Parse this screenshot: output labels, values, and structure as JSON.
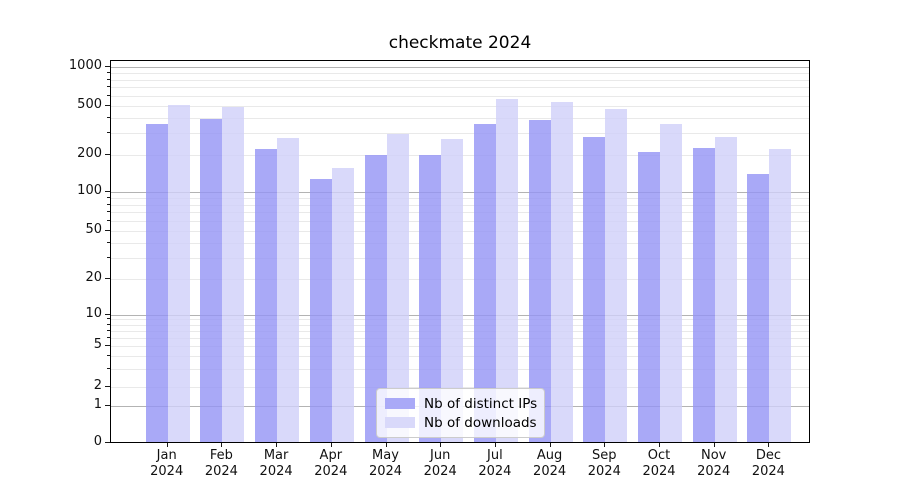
{
  "chart_data": {
    "type": "bar",
    "title": "checkmate 2024",
    "categories": [
      "Jan 2024",
      "Feb 2024",
      "Mar 2024",
      "Apr 2024",
      "May 2024",
      "Jun 2024",
      "Jul 2024",
      "Aug 2024",
      "Sep 2024",
      "Oct 2024",
      "Nov 2024",
      "Dec 2024"
    ],
    "series": [
      {
        "name": "Nb of distinct IPs",
        "color": "#a9a9f7",
        "values": [
          340,
          375,
          215,
          123,
          193,
          193,
          345,
          370,
          270,
          205,
          218,
          135
        ]
      },
      {
        "name": "Nb of downloads",
        "color": "#d9d9fa",
        "values": [
          485,
          470,
          265,
          152,
          287,
          259,
          545,
          512,
          455,
          345,
          267,
          215
        ]
      }
    ],
    "y_axis": {
      "scale": "symlog",
      "ticks": [
        0,
        1,
        2,
        5,
        10,
        20,
        50,
        100,
        200,
        500,
        1000
      ],
      "range": [
        0,
        1100
      ],
      "grid": "major-and-minor"
    },
    "x_axis": {
      "tick_label_lines": 2,
      "year": "2024"
    },
    "legend": {
      "position": "lower center",
      "labels": [
        "Nb of distinct IPs",
        "Nb of downloads"
      ]
    },
    "grid": true
  }
}
